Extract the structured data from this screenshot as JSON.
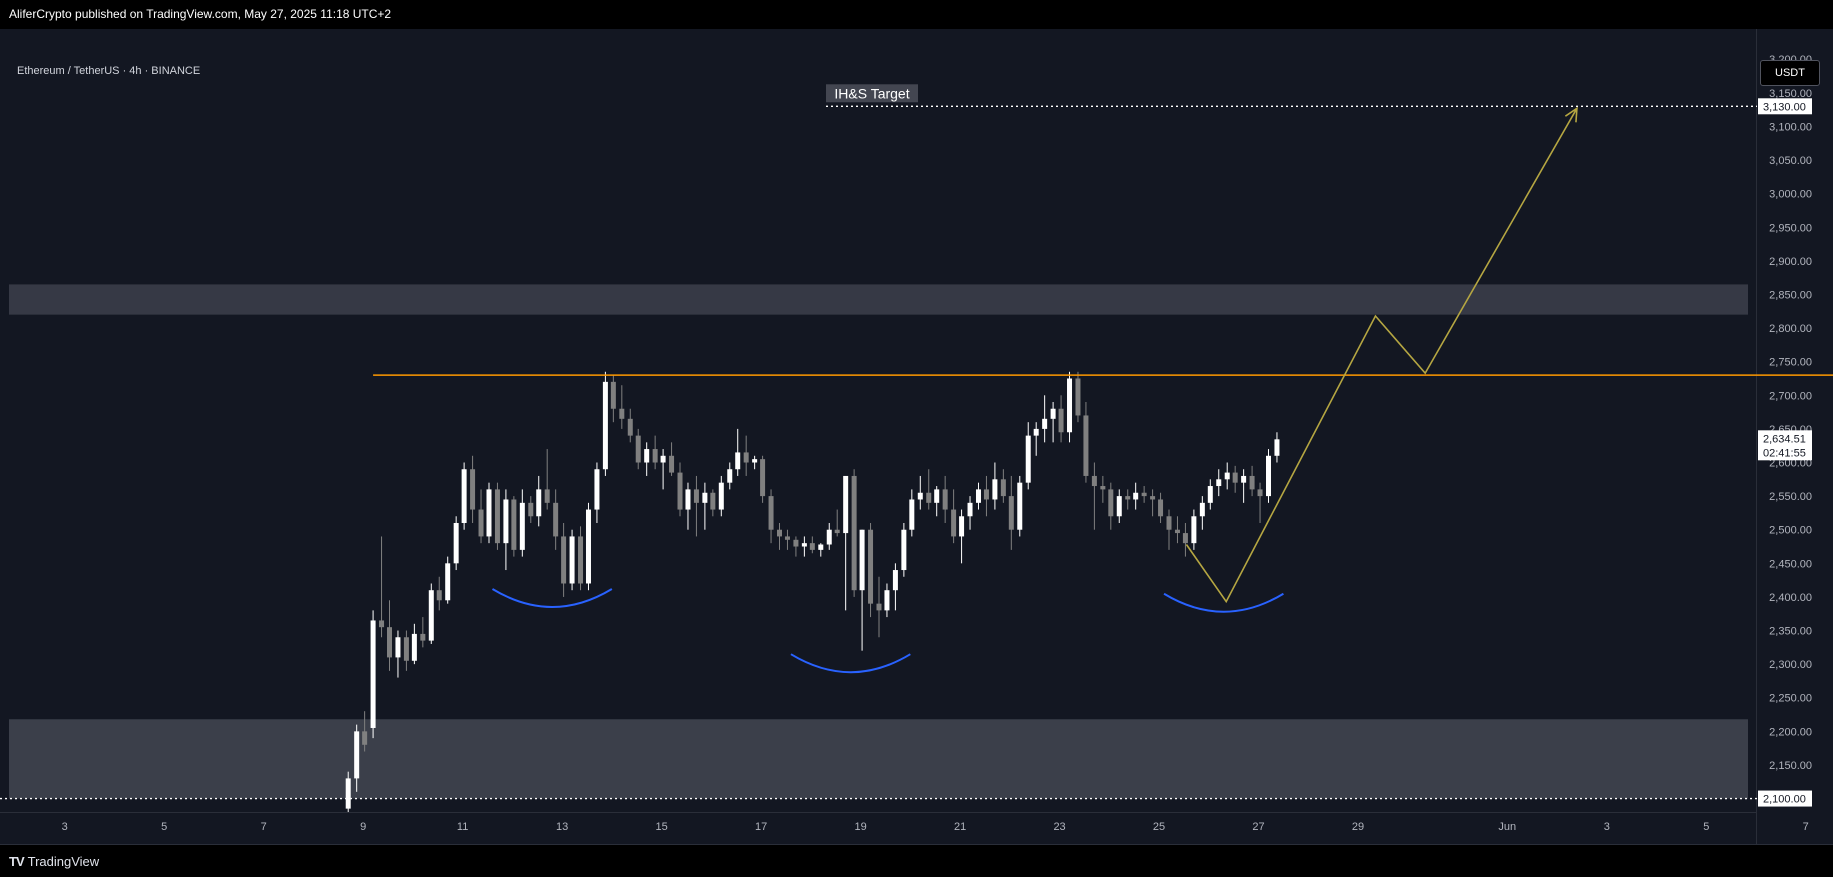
{
  "header": {
    "published_line": "AliferCrypto published on TradingView.com, May 27, 2025 11:18 UTC+2"
  },
  "symbol": {
    "line": "Ethereum / TetherUS · 4h · BINANCE",
    "currency": "USDT"
  },
  "footer": {
    "brand": "TradingView",
    "brand_mark": "TV"
  },
  "colors": {
    "background": "#131722",
    "up": "#ffffff",
    "down": "#808080",
    "neckline": "#ff9800",
    "shoulders": "#2962ff",
    "projection": "#b5a642",
    "zone": "#434651"
  },
  "chart_data": {
    "type": "candlestick",
    "timeframe": "4h",
    "y_axis": {
      "ticks": [
        2100,
        2150,
        2200,
        2250,
        2300,
        2350,
        2400,
        2450,
        2500,
        2550,
        2600,
        2650,
        2700,
        2750,
        2800,
        2850,
        2900,
        2950,
        3000,
        3050,
        3100,
        3150,
        3200
      ],
      "range": [
        2080,
        3245
      ]
    },
    "x_axis": {
      "labels": [
        "3",
        "5",
        "7",
        "9",
        "11",
        "13",
        "15",
        "17",
        "19",
        "21",
        "23",
        "25",
        "27",
        "29",
        "Jun",
        "3",
        "5",
        "7"
      ],
      "range_days": [
        1.7,
        37.0
      ]
    },
    "price_labels": {
      "target": "3,130.00",
      "bottom": "2,100.00",
      "current": "2,634.51",
      "countdown": "02:41:55"
    },
    "current_price": 2634.51,
    "annotations": {
      "target_label": "IH&S Target",
      "target_price": 3130,
      "neckline_price": 2730,
      "neckline_days": [
        9.2,
        40.2
      ],
      "resistance_zone": [
        2820,
        2865
      ],
      "support_zone": [
        2100,
        2218
      ],
      "bottom_line": 2100,
      "shoulders": [
        {
          "center_day": 12.8,
          "price": 2385,
          "half_width_days": 1.2
        },
        {
          "center_day": 18.8,
          "price": 2288,
          "half_width_days": 1.2
        },
        {
          "center_day": 26.3,
          "price": 2378,
          "half_width_days": 1.2
        }
      ],
      "projection_path": [
        {
          "day": 25.55,
          "price": 2478
        },
        {
          "day": 26.35,
          "price": 2393
        },
        {
          "day": 29.35,
          "price": 2818
        },
        {
          "day": 30.35,
          "price": 2733
        },
        {
          "day": 33.4,
          "price": 3127
        }
      ]
    },
    "candles": [
      {
        "d": 8.7,
        "o": 2085,
        "h": 2140,
        "l": 2080,
        "c": 2130
      },
      {
        "d": 8.87,
        "o": 2130,
        "h": 2210,
        "l": 2110,
        "c": 2200
      },
      {
        "d": 9.03,
        "o": 2200,
        "h": 2230,
        "l": 2170,
        "c": 2180
      },
      {
        "d": 9.2,
        "o": 2205,
        "h": 2380,
        "l": 2190,
        "c": 2365
      },
      {
        "d": 9.37,
        "o": 2365,
        "h": 2490,
        "l": 2340,
        "c": 2355
      },
      {
        "d": 9.53,
        "o": 2355,
        "h": 2395,
        "l": 2290,
        "c": 2310
      },
      {
        "d": 9.7,
        "o": 2310,
        "h": 2350,
        "l": 2280,
        "c": 2340
      },
      {
        "d": 9.87,
        "o": 2340,
        "h": 2350,
        "l": 2290,
        "c": 2305
      },
      {
        "d": 10.03,
        "o": 2305,
        "h": 2360,
        "l": 2300,
        "c": 2345
      },
      {
        "d": 10.2,
        "o": 2345,
        "h": 2370,
        "l": 2325,
        "c": 2335
      },
      {
        "d": 10.37,
        "o": 2335,
        "h": 2420,
        "l": 2330,
        "c": 2410
      },
      {
        "d": 10.53,
        "o": 2410,
        "h": 2430,
        "l": 2380,
        "c": 2395
      },
      {
        "d": 10.7,
        "o": 2395,
        "h": 2460,
        "l": 2390,
        "c": 2450
      },
      {
        "d": 10.87,
        "o": 2450,
        "h": 2520,
        "l": 2440,
        "c": 2510
      },
      {
        "d": 11.03,
        "o": 2510,
        "h": 2600,
        "l": 2500,
        "c": 2590
      },
      {
        "d": 11.2,
        "o": 2590,
        "h": 2610,
        "l": 2510,
        "c": 2530
      },
      {
        "d": 11.37,
        "o": 2530,
        "h": 2560,
        "l": 2480,
        "c": 2490
      },
      {
        "d": 11.53,
        "o": 2490,
        "h": 2570,
        "l": 2480,
        "c": 2560
      },
      {
        "d": 11.7,
        "o": 2560,
        "h": 2570,
        "l": 2470,
        "c": 2480
      },
      {
        "d": 11.87,
        "o": 2480,
        "h": 2560,
        "l": 2440,
        "c": 2545
      },
      {
        "d": 12.03,
        "o": 2545,
        "h": 2550,
        "l": 2460,
        "c": 2470
      },
      {
        "d": 12.2,
        "o": 2470,
        "h": 2560,
        "l": 2460,
        "c": 2540
      },
      {
        "d": 12.37,
        "o": 2540,
        "h": 2550,
        "l": 2510,
        "c": 2520
      },
      {
        "d": 12.53,
        "o": 2520,
        "h": 2580,
        "l": 2505,
        "c": 2560
      },
      {
        "d": 12.7,
        "o": 2560,
        "h": 2620,
        "l": 2530,
        "c": 2540
      },
      {
        "d": 12.87,
        "o": 2540,
        "h": 2560,
        "l": 2470,
        "c": 2490
      },
      {
        "d": 13.03,
        "o": 2490,
        "h": 2510,
        "l": 2400,
        "c": 2420
      },
      {
        "d": 13.2,
        "o": 2420,
        "h": 2500,
        "l": 2410,
        "c": 2490
      },
      {
        "d": 13.37,
        "o": 2490,
        "h": 2505,
        "l": 2410,
        "c": 2420
      },
      {
        "d": 13.53,
        "o": 2420,
        "h": 2540,
        "l": 2410,
        "c": 2530
      },
      {
        "d": 13.7,
        "o": 2530,
        "h": 2600,
        "l": 2510,
        "c": 2590
      },
      {
        "d": 13.87,
        "o": 2590,
        "h": 2735,
        "l": 2580,
        "c": 2720
      },
      {
        "d": 14.03,
        "o": 2720,
        "h": 2730,
        "l": 2660,
        "c": 2680
      },
      {
        "d": 14.2,
        "o": 2680,
        "h": 2715,
        "l": 2650,
        "c": 2665
      },
      {
        "d": 14.37,
        "o": 2665,
        "h": 2680,
        "l": 2630,
        "c": 2640
      },
      {
        "d": 14.53,
        "o": 2640,
        "h": 2650,
        "l": 2590,
        "c": 2600
      },
      {
        "d": 14.7,
        "o": 2600,
        "h": 2630,
        "l": 2580,
        "c": 2620
      },
      {
        "d": 14.87,
        "o": 2620,
        "h": 2640,
        "l": 2590,
        "c": 2600
      },
      {
        "d": 15.03,
        "o": 2600,
        "h": 2620,
        "l": 2560,
        "c": 2610
      },
      {
        "d": 15.2,
        "o": 2610,
        "h": 2630,
        "l": 2580,
        "c": 2585
      },
      {
        "d": 15.37,
        "o": 2585,
        "h": 2600,
        "l": 2520,
        "c": 2530
      },
      {
        "d": 15.53,
        "o": 2530,
        "h": 2570,
        "l": 2500,
        "c": 2560
      },
      {
        "d": 15.7,
        "o": 2560,
        "h": 2580,
        "l": 2490,
        "c": 2540
      },
      {
        "d": 15.87,
        "o": 2540,
        "h": 2570,
        "l": 2500,
        "c": 2555
      },
      {
        "d": 16.03,
        "o": 2555,
        "h": 2560,
        "l": 2520,
        "c": 2530
      },
      {
        "d": 16.2,
        "o": 2530,
        "h": 2580,
        "l": 2520,
        "c": 2570
      },
      {
        "d": 16.37,
        "o": 2570,
        "h": 2600,
        "l": 2560,
        "c": 2590
      },
      {
        "d": 16.53,
        "o": 2590,
        "h": 2650,
        "l": 2580,
        "c": 2615
      },
      {
        "d": 16.7,
        "o": 2615,
        "h": 2640,
        "l": 2580,
        "c": 2600
      },
      {
        "d": 16.87,
        "o": 2600,
        "h": 2610,
        "l": 2590,
        "c": 2605
      },
      {
        "d": 17.03,
        "o": 2605,
        "h": 2610,
        "l": 2540,
        "c": 2550
      },
      {
        "d": 17.2,
        "o": 2550,
        "h": 2560,
        "l": 2480,
        "c": 2500
      },
      {
        "d": 17.37,
        "o": 2500,
        "h": 2510,
        "l": 2470,
        "c": 2490
      },
      {
        "d": 17.53,
        "o": 2490,
        "h": 2500,
        "l": 2470,
        "c": 2485
      },
      {
        "d": 17.7,
        "o": 2485,
        "h": 2490,
        "l": 2460,
        "c": 2475
      },
      {
        "d": 17.87,
        "o": 2475,
        "h": 2490,
        "l": 2460,
        "c": 2480
      },
      {
        "d": 18.03,
        "o": 2480,
        "h": 2490,
        "l": 2465,
        "c": 2470
      },
      {
        "d": 18.2,
        "o": 2470,
        "h": 2480,
        "l": 2460,
        "c": 2478
      },
      {
        "d": 18.37,
        "o": 2478,
        "h": 2510,
        "l": 2470,
        "c": 2500
      },
      {
        "d": 18.53,
        "o": 2500,
        "h": 2530,
        "l": 2490,
        "c": 2495
      },
      {
        "d": 18.7,
        "o": 2495,
        "h": 2580,
        "l": 2380,
        "c": 2580
      },
      {
        "d": 18.87,
        "o": 2580,
        "h": 2590,
        "l": 2400,
        "c": 2410
      },
      {
        "d": 19.03,
        "o": 2410,
        "h": 2500,
        "l": 2320,
        "c": 2500
      },
      {
        "d": 19.2,
        "o": 2500,
        "h": 2510,
        "l": 2370,
        "c": 2390
      },
      {
        "d": 19.37,
        "o": 2390,
        "h": 2430,
        "l": 2340,
        "c": 2380
      },
      {
        "d": 19.53,
        "o": 2380,
        "h": 2420,
        "l": 2370,
        "c": 2410
      },
      {
        "d": 19.7,
        "o": 2410,
        "h": 2450,
        "l": 2380,
        "c": 2440
      },
      {
        "d": 19.87,
        "o": 2440,
        "h": 2510,
        "l": 2430,
        "c": 2500
      },
      {
        "d": 20.03,
        "o": 2500,
        "h": 2560,
        "l": 2490,
        "c": 2545
      },
      {
        "d": 20.2,
        "o": 2545,
        "h": 2580,
        "l": 2530,
        "c": 2555
      },
      {
        "d": 20.37,
        "o": 2555,
        "h": 2590,
        "l": 2530,
        "c": 2540
      },
      {
        "d": 20.53,
        "o": 2540,
        "h": 2565,
        "l": 2520,
        "c": 2560
      },
      {
        "d": 20.7,
        "o": 2560,
        "h": 2580,
        "l": 2510,
        "c": 2530
      },
      {
        "d": 20.87,
        "o": 2530,
        "h": 2560,
        "l": 2480,
        "c": 2490
      },
      {
        "d": 21.03,
        "o": 2490,
        "h": 2530,
        "l": 2450,
        "c": 2520
      },
      {
        "d": 21.2,
        "o": 2520,
        "h": 2550,
        "l": 2500,
        "c": 2540
      },
      {
        "d": 21.37,
        "o": 2540,
        "h": 2570,
        "l": 2530,
        "c": 2560
      },
      {
        "d": 21.53,
        "o": 2560,
        "h": 2580,
        "l": 2520,
        "c": 2545
      },
      {
        "d": 21.7,
        "o": 2545,
        "h": 2600,
        "l": 2530,
        "c": 2575
      },
      {
        "d": 21.87,
        "o": 2575,
        "h": 2590,
        "l": 2540,
        "c": 2550
      },
      {
        "d": 22.03,
        "o": 2550,
        "h": 2580,
        "l": 2470,
        "c": 2500
      },
      {
        "d": 22.2,
        "o": 2500,
        "h": 2580,
        "l": 2490,
        "c": 2570
      },
      {
        "d": 22.37,
        "o": 2570,
        "h": 2660,
        "l": 2560,
        "c": 2640
      },
      {
        "d": 22.53,
        "o": 2640,
        "h": 2660,
        "l": 2610,
        "c": 2650
      },
      {
        "d": 22.7,
        "o": 2650,
        "h": 2700,
        "l": 2630,
        "c": 2665
      },
      {
        "d": 22.87,
        "o": 2665,
        "h": 2690,
        "l": 2630,
        "c": 2680
      },
      {
        "d": 23.03,
        "o": 2680,
        "h": 2700,
        "l": 2630,
        "c": 2645
      },
      {
        "d": 23.2,
        "o": 2645,
        "h": 2735,
        "l": 2630,
        "c": 2725
      },
      {
        "d": 23.37,
        "o": 2725,
        "h": 2735,
        "l": 2660,
        "c": 2670
      },
      {
        "d": 23.53,
        "o": 2670,
        "h": 2690,
        "l": 2570,
        "c": 2580
      },
      {
        "d": 23.7,
        "o": 2580,
        "h": 2600,
        "l": 2500,
        "c": 2565
      },
      {
        "d": 23.87,
        "o": 2565,
        "h": 2580,
        "l": 2540,
        "c": 2560
      },
      {
        "d": 24.03,
        "o": 2560,
        "h": 2570,
        "l": 2500,
        "c": 2520
      },
      {
        "d": 24.2,
        "o": 2520,
        "h": 2560,
        "l": 2510,
        "c": 2550
      },
      {
        "d": 24.37,
        "o": 2550,
        "h": 2560,
        "l": 2530,
        "c": 2545
      },
      {
        "d": 24.53,
        "o": 2545,
        "h": 2570,
        "l": 2530,
        "c": 2555
      },
      {
        "d": 24.7,
        "o": 2555,
        "h": 2565,
        "l": 2540,
        "c": 2550
      },
      {
        "d": 24.87,
        "o": 2550,
        "h": 2560,
        "l": 2520,
        "c": 2545
      },
      {
        "d": 25.03,
        "o": 2545,
        "h": 2555,
        "l": 2510,
        "c": 2520
      },
      {
        "d": 25.2,
        "o": 2520,
        "h": 2530,
        "l": 2470,
        "c": 2500
      },
      {
        "d": 25.37,
        "o": 2500,
        "h": 2520,
        "l": 2480,
        "c": 2495
      },
      {
        "d": 25.53,
        "o": 2495,
        "h": 2510,
        "l": 2460,
        "c": 2480
      },
      {
        "d": 25.7,
        "o": 2480,
        "h": 2530,
        "l": 2470,
        "c": 2520
      },
      {
        "d": 25.87,
        "o": 2520,
        "h": 2550,
        "l": 2500,
        "c": 2540
      },
      {
        "d": 26.03,
        "o": 2540,
        "h": 2575,
        "l": 2530,
        "c": 2565
      },
      {
        "d": 26.2,
        "o": 2565,
        "h": 2590,
        "l": 2550,
        "c": 2575
      },
      {
        "d": 26.37,
        "o": 2575,
        "h": 2600,
        "l": 2560,
        "c": 2585
      },
      {
        "d": 26.53,
        "o": 2585,
        "h": 2595,
        "l": 2555,
        "c": 2570
      },
      {
        "d": 26.7,
        "o": 2570,
        "h": 2590,
        "l": 2540,
        "c": 2580
      },
      {
        "d": 26.87,
        "o": 2580,
        "h": 2595,
        "l": 2550,
        "c": 2560
      },
      {
        "d": 27.03,
        "o": 2560,
        "h": 2570,
        "l": 2510,
        "c": 2550
      },
      {
        "d": 27.2,
        "o": 2550,
        "h": 2620,
        "l": 2540,
        "c": 2610
      },
      {
        "d": 27.37,
        "o": 2610,
        "h": 2645,
        "l": 2600,
        "c": 2634.51
      }
    ]
  }
}
